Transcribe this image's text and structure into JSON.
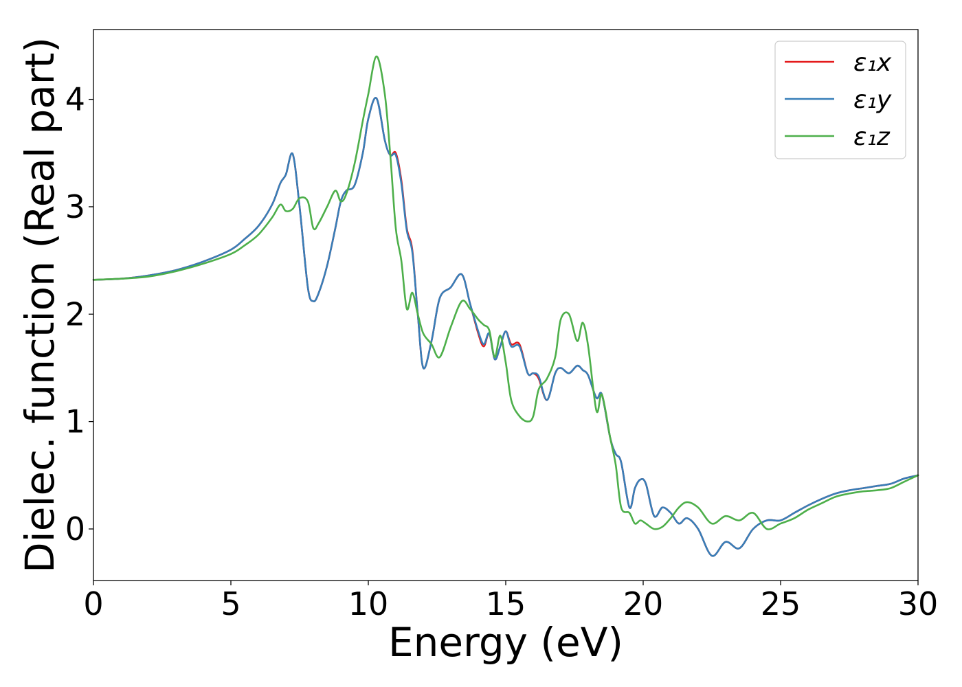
{
  "chart_data": {
    "type": "line",
    "title": "",
    "xlabel": "Energy (eV)",
    "ylabel": "Dielec. function (Real part)",
    "xlim": [
      0,
      30
    ],
    "ylim": [
      -0.48,
      4.65
    ],
    "xticks": [
      0,
      5,
      10,
      15,
      20,
      25,
      30
    ],
    "yticks": [
      0,
      1,
      2,
      3,
      4
    ],
    "grid": false,
    "legend_position": "top-right",
    "series": [
      {
        "name": "ε₁x",
        "color": "#e41a1c",
        "x": [
          0,
          1,
          2,
          3,
          4,
          5,
          5.5,
          6,
          6.5,
          6.8,
          7.0,
          7.25,
          7.5,
          7.8,
          8.0,
          8.2,
          8.5,
          8.8,
          9.0,
          9.2,
          9.5,
          9.8,
          10.0,
          10.3,
          10.6,
          10.8,
          11.0,
          11.2,
          11.4,
          11.6,
          11.8,
          12.0,
          12.3,
          12.6,
          13.0,
          13.4,
          13.7,
          14.0,
          14.2,
          14.4,
          14.6,
          14.8,
          15.0,
          15.2,
          15.5,
          15.8,
          16.0,
          16.2,
          16.5,
          16.8,
          17.0,
          17.3,
          17.6,
          17.8,
          18.0,
          18.3,
          18.5,
          18.8,
          19.0,
          19.2,
          19.5,
          19.7,
          19.9,
          20.1,
          20.4,
          20.7,
          21.0,
          21.3,
          21.6,
          22.0,
          22.5,
          23.0,
          23.5,
          24.0,
          24.5,
          25.0,
          25.5,
          26.0,
          26.5,
          27.0,
          27.5,
          28.0,
          28.5,
          29.0,
          29.5,
          30.0
        ],
        "y": [
          2.32,
          2.33,
          2.36,
          2.41,
          2.49,
          2.6,
          2.7,
          2.82,
          3.02,
          3.22,
          3.3,
          3.49,
          3.0,
          2.25,
          2.12,
          2.2,
          2.45,
          2.8,
          3.05,
          3.15,
          3.2,
          3.5,
          3.82,
          4.01,
          3.62,
          3.48,
          3.5,
          3.25,
          2.8,
          2.6,
          2.0,
          1.5,
          1.75,
          2.15,
          2.25,
          2.37,
          2.1,
          1.82,
          1.7,
          1.82,
          1.58,
          1.7,
          1.84,
          1.72,
          1.72,
          1.45,
          1.45,
          1.4,
          1.2,
          1.45,
          1.5,
          1.45,
          1.52,
          1.48,
          1.43,
          1.22,
          1.25,
          0.85,
          0.7,
          0.62,
          0.2,
          0.38,
          0.46,
          0.42,
          0.12,
          0.2,
          0.15,
          0.05,
          0.1,
          0.0,
          -0.25,
          -0.12,
          -0.18,
          0.0,
          0.08,
          0.08,
          0.15,
          0.22,
          0.28,
          0.33,
          0.36,
          0.38,
          0.4,
          0.42,
          0.47,
          0.5
        ]
      },
      {
        "name": "ε₁y",
        "color": "#377eb8",
        "x": [
          0,
          1,
          2,
          3,
          4,
          5,
          5.5,
          6,
          6.5,
          6.8,
          7.0,
          7.25,
          7.5,
          7.8,
          8.0,
          8.2,
          8.5,
          8.8,
          9.0,
          9.2,
          9.5,
          9.8,
          10.0,
          10.3,
          10.6,
          10.8,
          11.0,
          11.2,
          11.4,
          11.6,
          11.8,
          12.0,
          12.3,
          12.6,
          13.0,
          13.4,
          13.7,
          14.0,
          14.2,
          14.4,
          14.6,
          14.8,
          15.0,
          15.2,
          15.5,
          15.8,
          16.0,
          16.2,
          16.5,
          16.8,
          17.0,
          17.3,
          17.6,
          17.8,
          18.0,
          18.3,
          18.5,
          18.8,
          19.0,
          19.2,
          19.5,
          19.7,
          19.9,
          20.1,
          20.4,
          20.7,
          21.0,
          21.3,
          21.6,
          22.0,
          22.5,
          23.0,
          23.5,
          24.0,
          24.5,
          25.0,
          25.5,
          26.0,
          26.5,
          27.0,
          27.5,
          28.0,
          28.5,
          29.0,
          29.5,
          30.0
        ],
        "y": [
          2.32,
          2.33,
          2.36,
          2.41,
          2.49,
          2.6,
          2.7,
          2.82,
          3.02,
          3.22,
          3.3,
          3.49,
          3.0,
          2.25,
          2.12,
          2.2,
          2.45,
          2.8,
          3.05,
          3.15,
          3.2,
          3.5,
          3.82,
          4.01,
          3.62,
          3.48,
          3.48,
          3.22,
          2.78,
          2.58,
          2.0,
          1.5,
          1.75,
          2.15,
          2.25,
          2.37,
          2.1,
          1.84,
          1.72,
          1.82,
          1.58,
          1.7,
          1.84,
          1.7,
          1.7,
          1.45,
          1.45,
          1.42,
          1.2,
          1.45,
          1.5,
          1.45,
          1.52,
          1.48,
          1.43,
          1.22,
          1.25,
          0.85,
          0.7,
          0.62,
          0.2,
          0.38,
          0.46,
          0.42,
          0.12,
          0.2,
          0.15,
          0.05,
          0.1,
          0.0,
          -0.25,
          -0.12,
          -0.18,
          0.0,
          0.08,
          0.08,
          0.15,
          0.22,
          0.28,
          0.33,
          0.36,
          0.38,
          0.4,
          0.42,
          0.47,
          0.5
        ]
      },
      {
        "name": "ε₁z",
        "color": "#4daf4a",
        "x": [
          0,
          1,
          2,
          3,
          4,
          5,
          5.5,
          6,
          6.5,
          6.8,
          7.0,
          7.25,
          7.5,
          7.8,
          8.0,
          8.2,
          8.5,
          8.8,
          9.0,
          9.2,
          9.5,
          9.8,
          10.0,
          10.3,
          10.6,
          10.8,
          11.0,
          11.2,
          11.4,
          11.6,
          11.8,
          12.0,
          12.3,
          12.6,
          13.0,
          13.4,
          13.7,
          14.0,
          14.2,
          14.4,
          14.6,
          14.8,
          15.0,
          15.2,
          15.5,
          15.8,
          16.0,
          16.2,
          16.5,
          16.8,
          17.0,
          17.3,
          17.6,
          17.8,
          18.0,
          18.3,
          18.5,
          18.8,
          19.0,
          19.2,
          19.5,
          19.7,
          19.9,
          20.1,
          20.4,
          20.7,
          21.0,
          21.3,
          21.6,
          22.0,
          22.5,
          23.0,
          23.5,
          24.0,
          24.5,
          25.0,
          25.5,
          26.0,
          26.5,
          27.0,
          27.5,
          28.0,
          28.5,
          29.0,
          29.5,
          30.0
        ],
        "y": [
          2.32,
          2.33,
          2.35,
          2.4,
          2.47,
          2.56,
          2.64,
          2.74,
          2.9,
          3.02,
          2.96,
          2.98,
          3.08,
          3.05,
          2.8,
          2.85,
          3.0,
          3.15,
          3.05,
          3.12,
          3.4,
          3.8,
          4.05,
          4.4,
          4.05,
          3.48,
          2.8,
          2.5,
          2.05,
          2.2,
          2.0,
          1.82,
          1.72,
          1.6,
          1.88,
          2.12,
          2.05,
          1.95,
          1.9,
          1.85,
          1.6,
          1.8,
          1.55,
          1.2,
          1.05,
          1.0,
          1.05,
          1.3,
          1.4,
          1.6,
          1.95,
          2.0,
          1.75,
          1.92,
          1.7,
          1.1,
          1.25,
          0.85,
          0.6,
          0.2,
          0.15,
          0.05,
          0.08,
          0.05,
          0.0,
          0.02,
          0.1,
          0.2,
          0.25,
          0.2,
          0.05,
          0.12,
          0.08,
          0.15,
          0.0,
          0.05,
          0.1,
          0.18,
          0.24,
          0.3,
          0.33,
          0.35,
          0.36,
          0.38,
          0.44,
          0.5
        ]
      }
    ]
  }
}
